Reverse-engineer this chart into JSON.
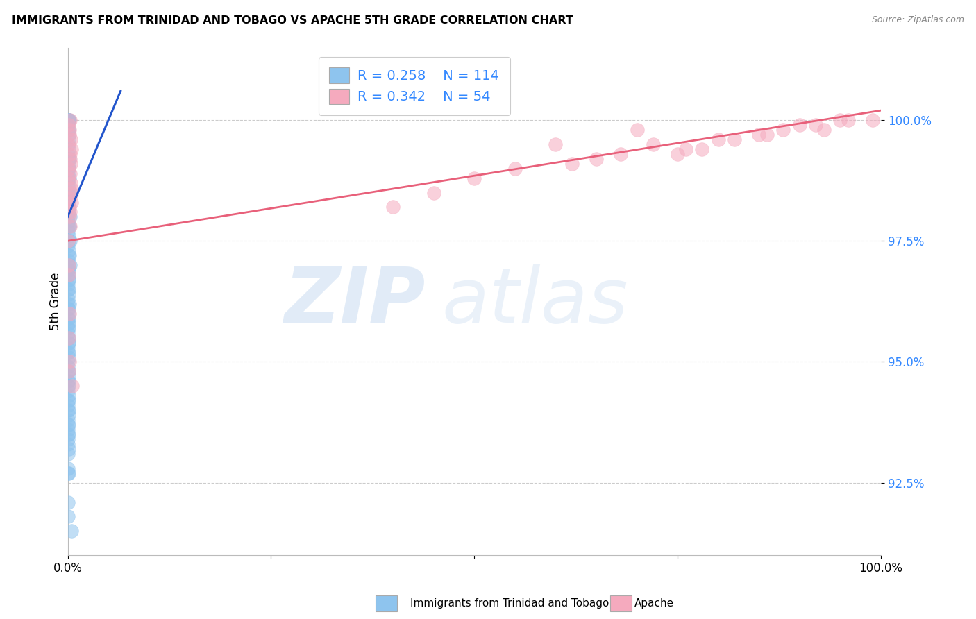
{
  "title": "IMMIGRANTS FROM TRINIDAD AND TOBAGO VS APACHE 5TH GRADE CORRELATION CHART",
  "source": "Source: ZipAtlas.com",
  "ylabel": "5th Grade",
  "y_ticks": [
    92.5,
    95.0,
    97.5,
    100.0
  ],
  "y_tick_labels": [
    "92.5%",
    "95.0%",
    "97.5%",
    "100.0%"
  ],
  "xlim": [
    0.0,
    100.0
  ],
  "ylim": [
    91.0,
    101.5
  ],
  "legend_r1": "R = 0.258",
  "legend_n1": "N = 114",
  "legend_r2": "R = 0.342",
  "legend_n2": "N = 54",
  "blue_color": "#8EC4EE",
  "pink_color": "#F5AABE",
  "blue_line_color": "#2255CC",
  "pink_line_color": "#E8607A",
  "legend_label1": "Immigrants from Trinidad and Tobago",
  "legend_label2": "Apache",
  "blue_dots_x": [
    0.05,
    0.08,
    0.1,
    0.05,
    0.12,
    0.15,
    0.18,
    0.06,
    0.09,
    0.11,
    0.03,
    0.07,
    0.13,
    0.05,
    0.1,
    0.06,
    0.08,
    0.14,
    0.04,
    0.07,
    0.16,
    0.22,
    0.04,
    0.06,
    0.1,
    0.05,
    0.08,
    0.12,
    0.03,
    0.18,
    0.06,
    0.09,
    0.15,
    0.04,
    0.07,
    0.11,
    0.05,
    0.08,
    0.13,
    0.06,
    0.2,
    0.04,
    0.07,
    0.1,
    0.05,
    0.09,
    0.14,
    0.03,
    0.06,
    0.12,
    0.28,
    0.08,
    0.15,
    0.04,
    0.07,
    0.11,
    0.05,
    0.09,
    0.16,
    0.03,
    0.06,
    0.1,
    0.05,
    0.17,
    0.07,
    0.13,
    0.04,
    0.08,
    0.12,
    0.06,
    0.35,
    0.19,
    0.05,
    0.09,
    0.14,
    0.03,
    0.07,
    0.11,
    0.06,
    0.08,
    0.17,
    0.04,
    0.06,
    0.1,
    0.05,
    0.09,
    0.13,
    0.03,
    0.07,
    0.25,
    0.15,
    0.05,
    0.08,
    0.12,
    0.04,
    0.06,
    0.1,
    0.32,
    0.07,
    0.14,
    0.03,
    0.06,
    0.11,
    0.05,
    0.08,
    0.01,
    0.04,
    0.01,
    0.13,
    0.01,
    0.06,
    0.09,
    0.15,
    0.48
  ],
  "blue_dots_y": [
    100.0,
    100.0,
    100.0,
    100.0,
    99.8,
    100.0,
    100.0,
    99.9,
    100.0,
    99.7,
    99.5,
    99.8,
    99.6,
    99.3,
    99.4,
    99.0,
    99.2,
    99.1,
    98.8,
    98.9,
    99.0,
    99.2,
    98.7,
    98.5,
    98.6,
    98.3,
    98.4,
    98.2,
    98.0,
    98.8,
    97.9,
    98.1,
    98.3,
    97.7,
    97.8,
    97.6,
    97.4,
    97.5,
    97.3,
    97.1,
    97.8,
    97.0,
    96.9,
    97.2,
    96.8,
    96.7,
    97.0,
    96.5,
    96.6,
    96.9,
    97.5,
    96.4,
    96.8,
    96.3,
    96.2,
    96.5,
    96.1,
    96.0,
    96.7,
    95.9,
    95.8,
    96.1,
    95.7,
    97.2,
    95.6,
    95.9,
    95.5,
    95.4,
    95.7,
    95.3,
    98.5,
    97.8,
    95.2,
    95.1,
    95.4,
    95.0,
    94.9,
    95.2,
    94.8,
    94.7,
    96.2,
    94.6,
    94.5,
    94.8,
    94.4,
    94.3,
    94.6,
    94.2,
    94.1,
    97.0,
    95.5,
    94.0,
    93.9,
    94.2,
    93.8,
    93.7,
    94.0,
    98.0,
    93.6,
    95.8,
    93.5,
    93.4,
    93.7,
    93.3,
    93.2,
    92.7,
    93.1,
    91.8,
    94.5,
    92.1,
    92.8,
    92.7,
    93.5,
    91.5
  ],
  "pink_dots_x": [
    0.1,
    0.2,
    0.28,
    0.15,
    0.22,
    0.08,
    0.38,
    0.32,
    0.12,
    0.26,
    0.45,
    0.18,
    0.3,
    0.21,
    0.42,
    0.06,
    0.35,
    0.14,
    0.24,
    0.4,
    0.55,
    0.1,
    0.28,
    0.2,
    0.5,
    0.09,
    0.44,
    0.16,
    0.32,
    0.24,
    60.0,
    70.0,
    75.0,
    80.0,
    85.0,
    90.0,
    95.0,
    78.0,
    65.0,
    88.0,
    55.0,
    92.0,
    72.0,
    50.0,
    82.0,
    96.0,
    68.0,
    45.0,
    86.0,
    99.0,
    40.0,
    76.0,
    62.0,
    93.0
  ],
  "pink_dots_y": [
    99.9,
    99.8,
    100.0,
    99.5,
    99.7,
    99.0,
    99.6,
    99.3,
    98.8,
    99.2,
    98.5,
    98.2,
    98.9,
    98.0,
    99.1,
    97.5,
    98.7,
    97.0,
    98.4,
    98.6,
    94.5,
    96.8,
    97.8,
    96.0,
    98.3,
    95.5,
    99.4,
    94.8,
    98.1,
    95.0,
    99.5,
    99.8,
    99.3,
    99.6,
    99.7,
    99.9,
    100.0,
    99.4,
    99.2,
    99.8,
    99.0,
    99.9,
    99.5,
    98.8,
    99.6,
    100.0,
    99.3,
    98.5,
    99.7,
    100.0,
    98.2,
    99.4,
    99.1,
    99.8
  ],
  "blue_trendline_x": [
    0.0,
    6.5
  ],
  "blue_trendline_y": [
    98.0,
    100.6
  ],
  "pink_trendline_x": [
    0.0,
    100.0
  ],
  "pink_trendline_y": [
    97.5,
    100.2
  ]
}
